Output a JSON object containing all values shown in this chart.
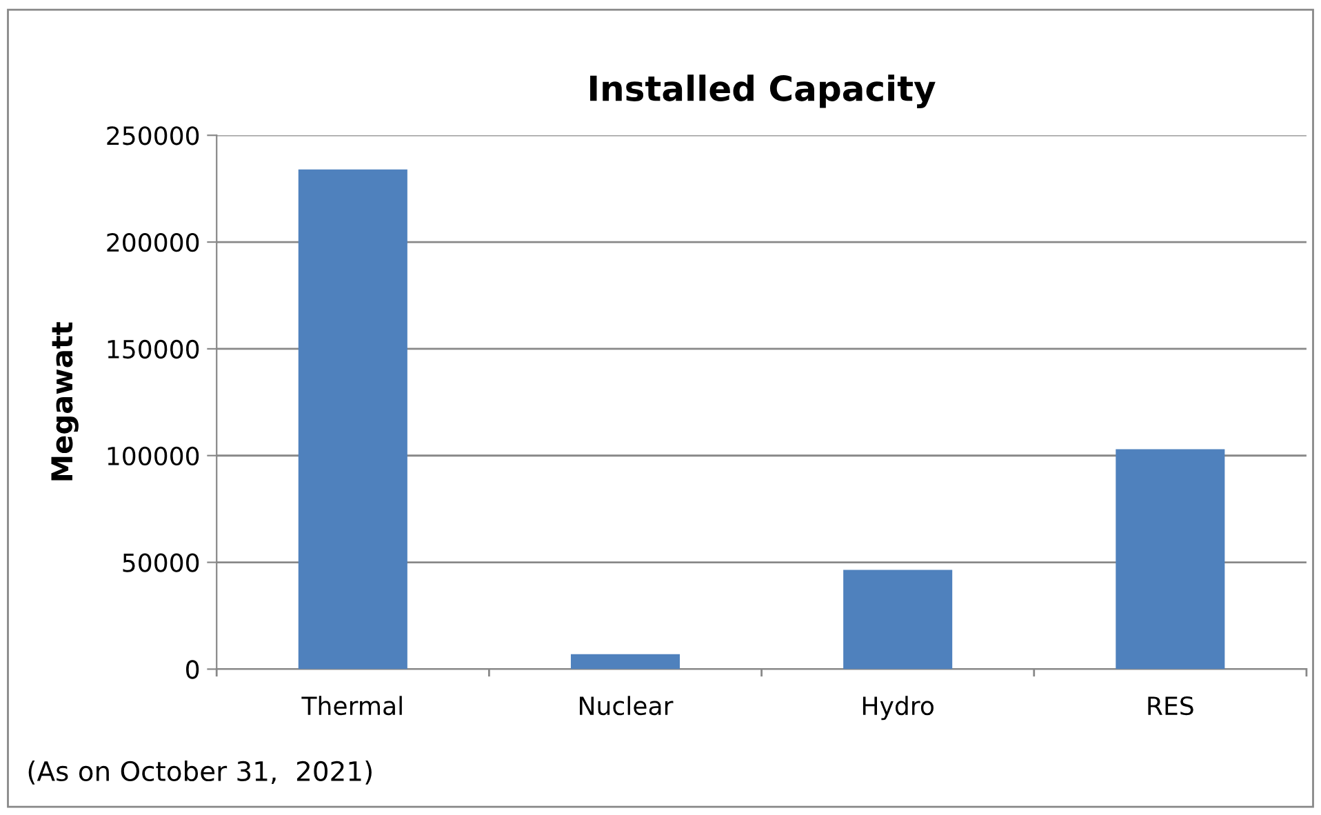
{
  "chart_data": {
    "type": "bar",
    "title": "Installed Capacity",
    "ylabel": "Megawatt",
    "categories": [
      "Thermal",
      "Nuclear",
      "Hydro",
      "RES"
    ],
    "values": [
      234000,
      7000,
      46500,
      103000
    ],
    "color": "#4f81bd",
    "ylim": [
      0,
      250000
    ],
    "yticks": [
      0,
      50000,
      100000,
      150000,
      200000,
      250000
    ],
    "grid": "y",
    "annotations": [
      "(As on October 31,  2021)"
    ]
  }
}
